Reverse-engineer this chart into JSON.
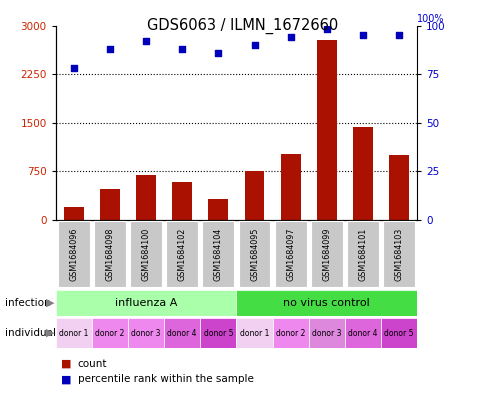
{
  "title": "GDS6063 / ILMN_1672660",
  "samples": [
    "GSM1684096",
    "GSM1684098",
    "GSM1684100",
    "GSM1684102",
    "GSM1684104",
    "GSM1684095",
    "GSM1684097",
    "GSM1684099",
    "GSM1684101",
    "GSM1684103"
  ],
  "counts": [
    200,
    480,
    700,
    580,
    330,
    760,
    1020,
    2780,
    1440,
    1000
  ],
  "percentile_ranks": [
    78,
    88,
    92,
    88,
    86,
    90,
    94,
    98,
    95,
    95
  ],
  "ylim_left": [
    0,
    3000
  ],
  "ylim_right": [
    0,
    100
  ],
  "yticks_left": [
    0,
    750,
    1500,
    2250,
    3000
  ],
  "yticks_right": [
    0,
    25,
    50,
    75,
    100
  ],
  "infection_groups": [
    {
      "label": "influenza A",
      "start": 0,
      "end": 5,
      "color": "#AAFFAA"
    },
    {
      "label": "no virus control",
      "start": 5,
      "end": 10,
      "color": "#44DD44"
    }
  ],
  "individual_labels": [
    "donor 1",
    "donor 2",
    "donor 3",
    "donor 4",
    "donor 5",
    "donor 1",
    "donor 2",
    "donor 3",
    "donor 4",
    "donor 5"
  ],
  "individual_colors": [
    "#F0C0F0",
    "#EE88EE",
    "#EE88EE",
    "#EE88EE",
    "#CC55CC",
    "#F0C0F0",
    "#EE88EE",
    "#EE88EE",
    "#EE88EE",
    "#CC55CC"
  ],
  "bar_color": "#AA1100",
  "scatter_color": "#0000BB",
  "legend_count_color": "#AA1100",
  "legend_scatter_color": "#0000BB",
  "infection_label": "infection",
  "individual_label": "individual",
  "count_label": "count",
  "percentile_label": "percentile rank within the sample",
  "sample_box_color": "#C8C8C8",
  "plot_bg_color": "#FFFFFF",
  "grid_color": "#000000"
}
